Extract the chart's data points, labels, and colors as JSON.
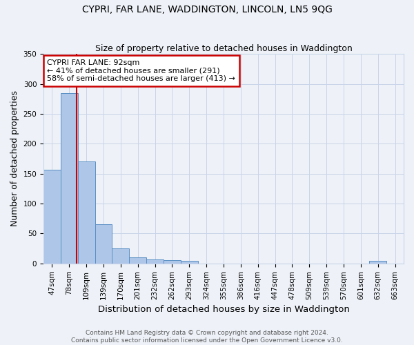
{
  "title": "CYPRI, FAR LANE, WADDINGTON, LINCOLN, LN5 9QG",
  "subtitle": "Size of property relative to detached houses in Waddington",
  "xlabel": "Distribution of detached houses by size in Waddington",
  "ylabel": "Number of detached properties",
  "bin_labels": [
    "47sqm",
    "78sqm",
    "109sqm",
    "139sqm",
    "170sqm",
    "201sqm",
    "232sqm",
    "262sqm",
    "293sqm",
    "324sqm",
    "355sqm",
    "386sqm",
    "416sqm",
    "447sqm",
    "478sqm",
    "509sqm",
    "539sqm",
    "570sqm",
    "601sqm",
    "632sqm",
    "663sqm"
  ],
  "bar_values": [
    157,
    285,
    170,
    65,
    25,
    10,
    7,
    5,
    4,
    0,
    0,
    0,
    0,
    0,
    0,
    0,
    0,
    0,
    0,
    4,
    0
  ],
  "bar_color": "#aec6e8",
  "bar_edge_color": "#5a8fc4",
  "red_line_x": 1.45,
  "annotation_text": "CYPRI FAR LANE: 92sqm\n← 41% of detached houses are smaller (291)\n58% of semi-detached houses are larger (413) →",
  "annotation_box_color": "#ffffff",
  "annotation_box_edge_color": "#cc0000",
  "red_line_color": "#cc0000",
  "ylim": [
    0,
    350
  ],
  "yticks": [
    0,
    50,
    100,
    150,
    200,
    250,
    300,
    350
  ],
  "footer_text": "Contains HM Land Registry data © Crown copyright and database right 2024.\nContains public sector information licensed under the Open Government Licence v3.0.",
  "background_color": "#eef2f8",
  "grid_color": "#c8d4e8",
  "title_fontsize": 10,
  "subtitle_fontsize": 9,
  "axis_label_fontsize": 9,
  "tick_fontsize": 7.5,
  "footer_fontsize": 6.5,
  "annotation_fontsize": 8
}
